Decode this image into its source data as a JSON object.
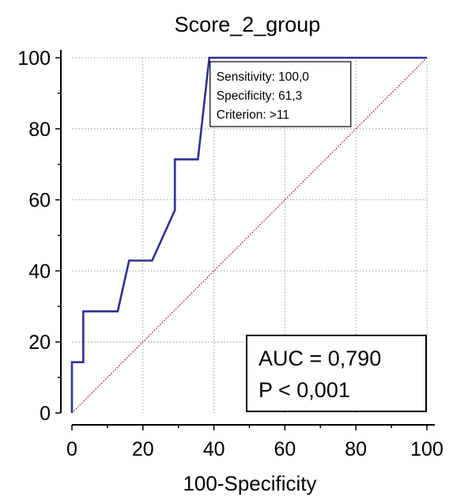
{
  "chart_data": {
    "type": "line",
    "title": "Score_2_group",
    "xlabel": "100-Specificity",
    "ylabel": "",
    "xlim": [
      0,
      100
    ],
    "ylim": [
      0,
      100
    ],
    "x_ticks": [
      "0",
      "20",
      "40",
      "60",
      "80",
      "100"
    ],
    "y_ticks": [
      "0",
      "20",
      "40",
      "60",
      "80",
      "100"
    ],
    "grid": true,
    "series": [
      {
        "color": "#2e3192",
        "x": [
          0,
          0,
          3.2,
          3.2,
          12.9,
          16.1,
          22.6,
          29.0,
          29.0,
          35.5,
          38.7,
          100
        ],
        "y": [
          0,
          14.3,
          14.3,
          28.6,
          28.6,
          42.9,
          42.9,
          57.1,
          71.4,
          71.4,
          100,
          100
        ]
      }
    ],
    "reference_line": {
      "color": "#8b1a1a",
      "x": [
        0,
        100
      ],
      "y": [
        0,
        100
      ]
    },
    "criterion_box": {
      "lines": [
        "Sensitivity: 100,0",
        "Specificity: 61,3",
        "Criterion: >11"
      ],
      "anchor": [
        38.7,
        100
      ]
    },
    "stats_box": {
      "lines": [
        "AUC = 0,790",
        "P < 0,001"
      ]
    }
  }
}
